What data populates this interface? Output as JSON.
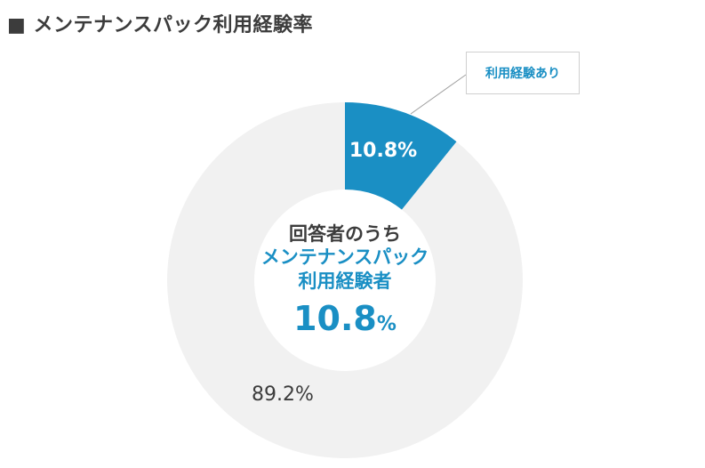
{
  "title": "■ メンテナンスパック利用経験率",
  "callout_label": "利用経験あり",
  "center": {
    "line1": "回答者のうち",
    "line2": "メンテナンスパック",
    "line3": "利用経験者",
    "value": "10.8",
    "unit": "%"
  },
  "colors": {
    "accent": "#1a8fc4",
    "rest": "#f1f1f1"
  },
  "chart_data": {
    "type": "pie",
    "title": "メンテナンスパック利用経験率",
    "slices": [
      {
        "name": "利用経験あり",
        "value": 10.8,
        "label": "10.8%",
        "color": "#1a8fc4"
      },
      {
        "name": "",
        "value": 89.2,
        "label": "89.2%",
        "color": "#f1f1f1"
      }
    ]
  }
}
